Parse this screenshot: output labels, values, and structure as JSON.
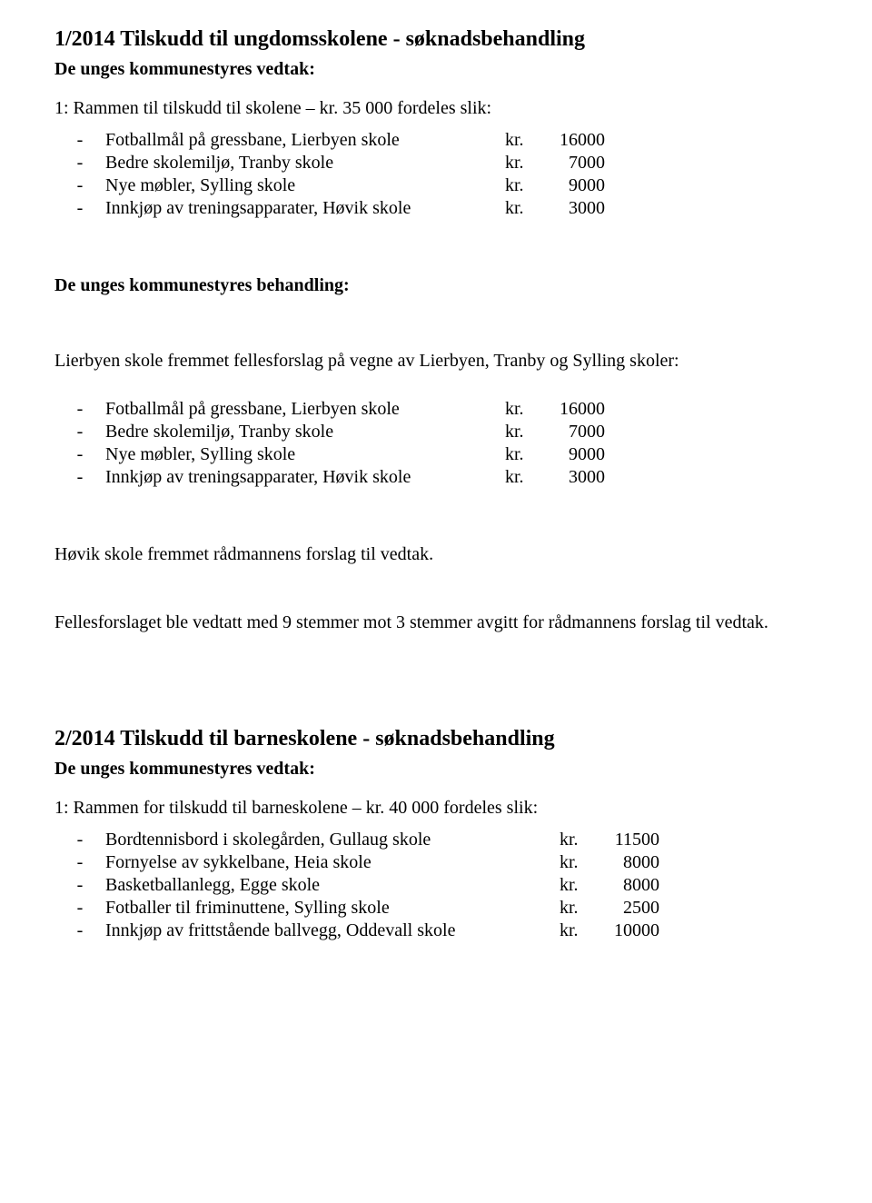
{
  "section1": {
    "heading": "1/2014 Tilskudd til ungdomsskolene - søknadsbehandling",
    "vedtak_label": "De unges kommunestyres vedtak:",
    "intro": "1: Rammen til tilskudd til skolene – kr. 35 000 fordeles slik:",
    "items": [
      {
        "label": "Fotballmål på gressbane, Lierbyen skole",
        "kr": "kr.",
        "amount": "16000",
        "label_w": 440,
        "kr_w": 40,
        "amt_w": 70
      },
      {
        "label": "Bedre skolemiljø, Tranby skole",
        "kr": "kr.",
        "amount": "7000",
        "label_w": 440,
        "kr_w": 50,
        "amt_w": 60
      },
      {
        "label": "Nye møbler, Sylling skole",
        "kr": "kr.",
        "amount": "9000",
        "label_w": 440,
        "kr_w": 50,
        "amt_w": 60
      },
      {
        "label": "Innkjøp av treningsapparater, Høvik skole",
        "kr": "kr.",
        "amount": "3000",
        "label_w": 440,
        "kr_w": 50,
        "amt_w": 60
      }
    ],
    "behandling_label": "De unges kommunestyres behandling:",
    "behandling_intro": "Lierbyen skole fremmet fellesforslag på vegne av Lierbyen, Tranby og Sylling skoler:",
    "items2": [
      {
        "label": "Fotballmål på gressbane, Lierbyen skole",
        "kr": "kr.",
        "amount": "16000",
        "label_w": 440,
        "kr_w": 40,
        "amt_w": 70
      },
      {
        "label": "Bedre skolemiljø, Tranby skole",
        "kr": "kr.",
        "amount": "7000",
        "label_w": 440,
        "kr_w": 50,
        "amt_w": 60
      },
      {
        "label": "Nye møbler, Sylling skole",
        "kr": "kr.",
        "amount": "9000",
        "label_w": 440,
        "kr_w": 50,
        "amt_w": 60
      },
      {
        "label": "Innkjøp av treningsapparater, Høvik skole",
        "kr": "kr.",
        "amount": "3000",
        "label_w": 440,
        "kr_w": 50,
        "amt_w": 60
      }
    ],
    "hovik_line": "Høvik skole fremmet rådmannens forslag til vedtak.",
    "felles_line": "Fellesforslaget ble vedtatt med 9 stemmer mot 3 stemmer avgitt for rådmannens forslag til vedtak."
  },
  "section2": {
    "heading": "2/2014 Tilskudd til barneskolene - søknadsbehandling",
    "vedtak_label": "De unges kommunestyres vedtak:",
    "intro": "1: Rammen for tilskudd til barneskolene – kr. 40 000 fordeles slik:",
    "items": [
      {
        "label": "Bordtennisbord i skolegården, Gullaug skole",
        "kr": "kr.",
        "amount": "11500",
        "label_w": 500,
        "kr_w": 40,
        "amt_w": 70
      },
      {
        "label": "Fornyelse av sykkelbane, Heia skole",
        "kr": "kr.",
        "amount": "8000",
        "label_w": 500,
        "kr_w": 50,
        "amt_w": 60
      },
      {
        "label": "Basketballanlegg, Egge skole",
        "kr": "kr.",
        "amount": "8000",
        "label_w": 500,
        "kr_w": 50,
        "amt_w": 60
      },
      {
        "label": "Fotballer til friminuttene, Sylling skole",
        "kr": "kr.",
        "amount": "2500",
        "label_w": 500,
        "kr_w": 50,
        "amt_w": 60
      },
      {
        "label": "Innkjøp av frittstående ballvegg, Oddevall skole",
        "kr": "kr.",
        "amount": "10000",
        "label_w": 500,
        "kr_w": 40,
        "amt_w": 70
      }
    ]
  },
  "dash": "-"
}
